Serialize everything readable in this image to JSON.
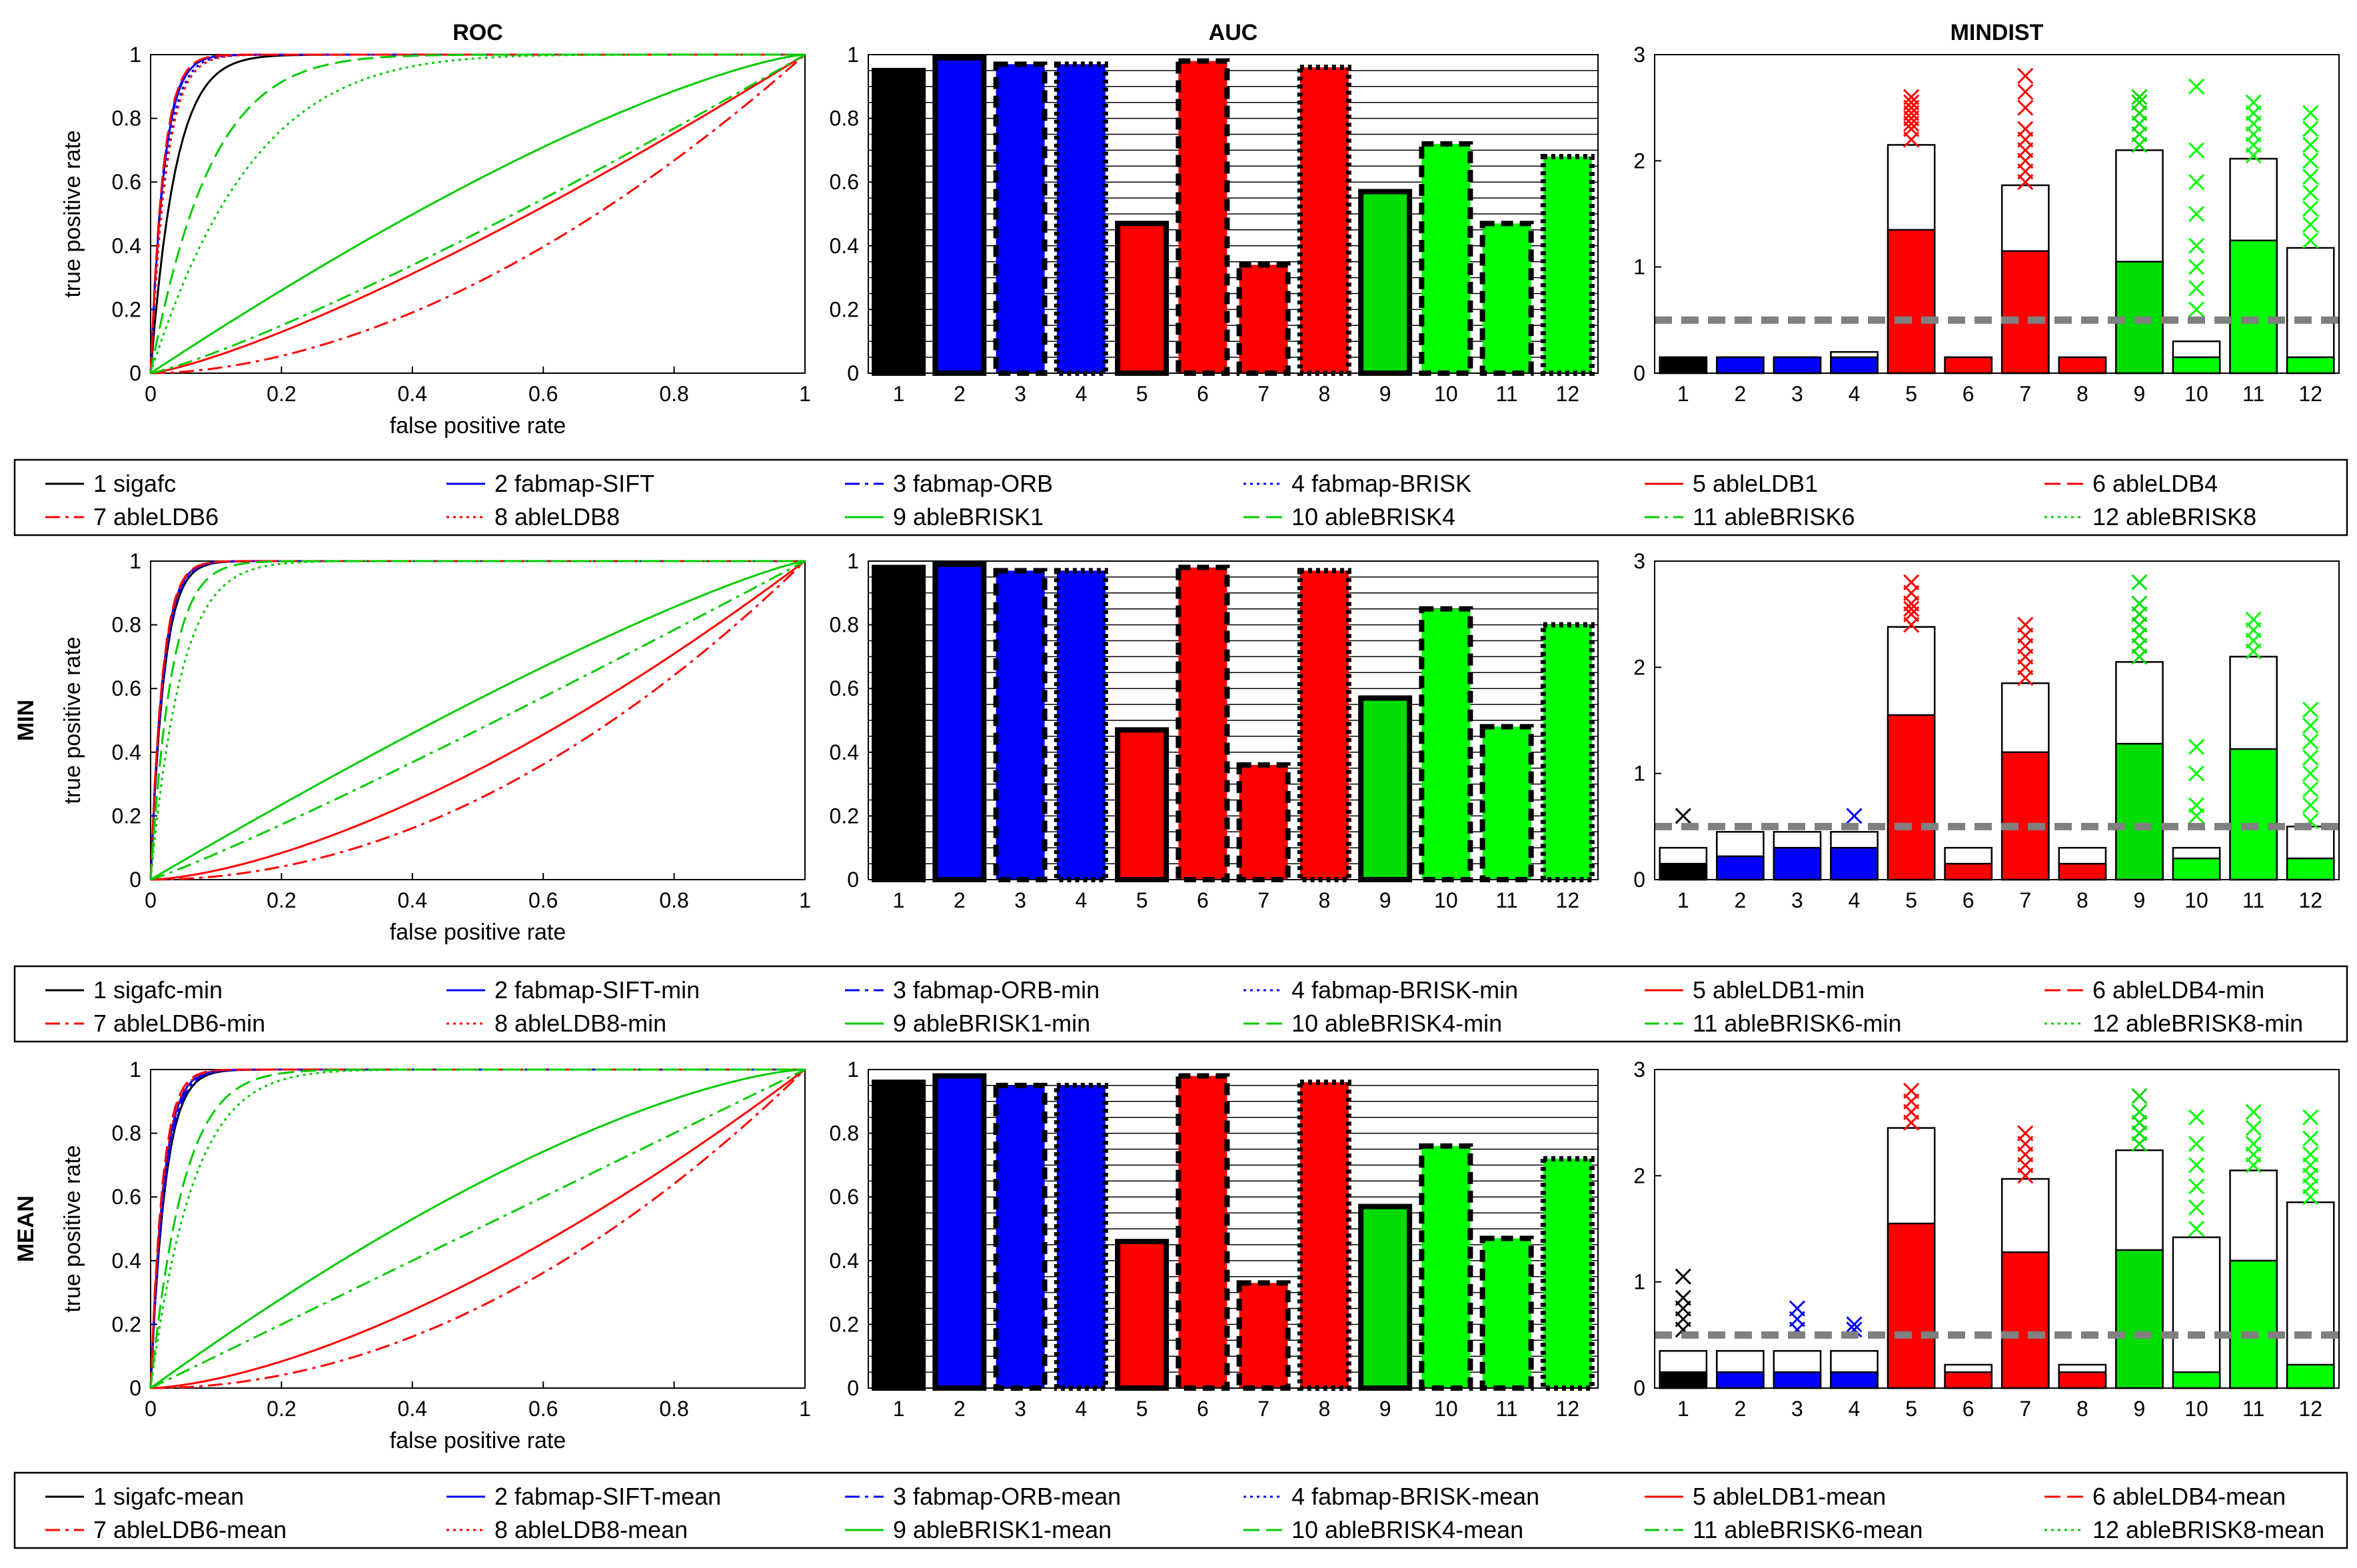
{
  "chart_data": {
    "type": "figure-grid",
    "column_titles": [
      "ROC",
      "AUC",
      "MINDIST"
    ],
    "rows": [
      {
        "row_label": "",
        "legend": [
          "1 sigafc",
          "2 fabmap-SIFT",
          "3 fabmap-ORB",
          "4 fabmap-BRISK",
          "5 ableLDB1",
          "6 ableLDB4",
          "7 ableLDB6",
          "8 ableLDB8",
          "9 ableBRISK1",
          "10 ableBRISK4",
          "11 ableBRISK6",
          "12 ableBRISK8"
        ],
        "roc": {
          "type": "line",
          "xlabel": "false positive rate",
          "ylabel": "true positive rate",
          "xlim": [
            0,
            1
          ],
          "ylim": [
            0,
            1
          ],
          "xticks": [
            "0",
            "0.2",
            "0.4",
            "0.6",
            "0.8",
            "1"
          ],
          "yticks": [
            "0",
            "0.2",
            "0.4",
            "0.6",
            "0.8",
            "1"
          ],
          "series_strength": [
            0.75,
            0.93,
            0.94,
            0.9,
            -0.15,
            0.95,
            -0.45,
            0.88,
            0.18,
            0.55,
            -0.1,
            0.45
          ]
        },
        "auc": {
          "type": "bar",
          "categories": [
            "1",
            "2",
            "3",
            "4",
            "5",
            "6",
            "7",
            "8",
            "9",
            "10",
            "11",
            "12"
          ],
          "ylim": [
            0,
            1
          ],
          "yticks": [
            "0",
            "0.2",
            "0.4",
            "0.6",
            "0.8",
            "1"
          ],
          "values": [
            0.95,
            0.99,
            0.97,
            0.97,
            0.47,
            0.98,
            0.34,
            0.96,
            0.57,
            0.72,
            0.47,
            0.68
          ]
        },
        "mindist": {
          "type": "bar",
          "categories": [
            "1",
            "2",
            "3",
            "4",
            "5",
            "6",
            "7",
            "8",
            "9",
            "10",
            "11",
            "12"
          ],
          "ylim": [
            0,
            3
          ],
          "yticks": [
            "0",
            "1",
            "2",
            "3"
          ],
          "threshold": 0.5,
          "lower": [
            0.15,
            0.15,
            0.15,
            0.15,
            1.35,
            0.15,
            1.15,
            0.15,
            1.05,
            0.15,
            1.25,
            0.15
          ],
          "upper": [
            0.15,
            0.15,
            0.15,
            0.2,
            2.15,
            0.15,
            1.77,
            0.15,
            2.1,
            0.3,
            2.02,
            1.18
          ],
          "outliers": [
            [],
            [],
            [],
            [],
            [
              2.2,
              2.3,
              2.35,
              2.4,
              2.45,
              2.5,
              2.55,
              2.6
            ],
            [],
            [
              1.8,
              1.9,
              2.0,
              2.1,
              2.2,
              2.3,
              2.5,
              2.65,
              2.8
            ],
            [],
            [
              2.15,
              2.25,
              2.35,
              2.45,
              2.55,
              2.6
            ],
            [
              0.6,
              0.8,
              1.0,
              1.2,
              1.5,
              1.8,
              2.1,
              2.7
            ],
            [
              2.05,
              2.15,
              2.25,
              2.35,
              2.45,
              2.55
            ],
            [
              1.25,
              1.4,
              1.55,
              1.7,
              1.85,
              2.0,
              2.15,
              2.3,
              2.45
            ]
          ]
        }
      },
      {
        "row_label": "MIN",
        "legend": [
          "1 sigafc-min",
          "2 fabmap-SIFT-min",
          "3 fabmap-ORB-min",
          "4 fabmap-BRISK-min",
          "5 ableLDB1-min",
          "6 ableLDB4-min",
          "7 ableLDB6-min",
          "8 ableLDB8-min",
          "9 ableBRISK1-min",
          "10 ableBRISK4-min",
          "11 ableBRISK6-min",
          "12 ableBRISK8-min"
        ],
        "roc": {
          "type": "line",
          "xlabel": "false positive rate",
          "ylabel": "true positive rate",
          "xlim": [
            0,
            1
          ],
          "ylim": [
            0,
            1
          ],
          "xticks": [
            "0",
            "0.2",
            "0.4",
            "0.6",
            "0.8",
            "1"
          ],
          "yticks": [
            "0",
            "0.2",
            "0.4",
            "0.6",
            "0.8",
            "1"
          ],
          "series_strength": [
            0.93,
            0.96,
            0.95,
            0.94,
            -0.3,
            0.97,
            -0.55,
            0.96,
            0.15,
            0.8,
            -0.05,
            0.7
          ]
        },
        "auc": {
          "type": "bar",
          "categories": [
            "1",
            "2",
            "3",
            "4",
            "5",
            "6",
            "7",
            "8",
            "9",
            "10",
            "11",
            "12"
          ],
          "ylim": [
            0,
            1
          ],
          "yticks": [
            "0",
            "0.2",
            "0.4",
            "0.6",
            "0.8",
            "1"
          ],
          "values": [
            0.98,
            0.99,
            0.97,
            0.97,
            0.47,
            0.98,
            0.36,
            0.97,
            0.57,
            0.85,
            0.48,
            0.8
          ]
        },
        "mindist": {
          "type": "bar",
          "categories": [
            "1",
            "2",
            "3",
            "4",
            "5",
            "6",
            "7",
            "8",
            "9",
            "10",
            "11",
            "12"
          ],
          "ylim": [
            0,
            3
          ],
          "yticks": [
            "0",
            "1",
            "2",
            "3"
          ],
          "threshold": 0.5,
          "lower": [
            0.15,
            0.22,
            0.3,
            0.3,
            1.55,
            0.15,
            1.2,
            0.15,
            1.28,
            0.2,
            1.23,
            0.2
          ],
          "upper": [
            0.3,
            0.45,
            0.45,
            0.45,
            2.38,
            0.3,
            1.85,
            0.3,
            2.05,
            0.3,
            2.1,
            0.5
          ],
          "outliers": [
            [
              0.6
            ],
            [],
            [],
            [
              0.6
            ],
            [
              2.4,
              2.5,
              2.55,
              2.6,
              2.7,
              2.8
            ],
            [],
            [
              1.9,
              2.0,
              2.1,
              2.2,
              2.3,
              2.4
            ],
            [],
            [
              2.1,
              2.2,
              2.3,
              2.4,
              2.5,
              2.6,
              2.8
            ],
            [
              0.6,
              0.7,
              1.0,
              1.25
            ],
            [
              2.15,
              2.25,
              2.35,
              2.45
            ],
            [
              0.55,
              0.7,
              0.85,
              1.0,
              1.15,
              1.3,
              1.45,
              1.6
            ]
          ]
        }
      },
      {
        "row_label": "MEAN",
        "legend": [
          "1 sigafc-mean",
          "2 fabmap-SIFT-mean",
          "3 fabmap-ORB-mean",
          "4 fabmap-BRISK-mean",
          "5 ableLDB1-mean",
          "6 ableLDB4-mean",
          "7 ableLDB6-mean",
          "8 ableLDB8-mean",
          "9 ableBRISK1-mean",
          "10 ableBRISK4-mean",
          "11 ableBRISK6-mean",
          "12 ableBRISK8-mean"
        ],
        "roc": {
          "type": "line",
          "xlabel": "false positive rate",
          "ylabel": "true positive rate",
          "xlim": [
            0,
            1
          ],
          "ylim": [
            0,
            1
          ],
          "xticks": [
            "0",
            "0.2",
            "0.4",
            "0.6",
            "0.8",
            "1"
          ],
          "yticks": [
            "0",
            "0.2",
            "0.4",
            "0.6",
            "0.8",
            "1"
          ],
          "series_strength": [
            0.9,
            0.94,
            0.92,
            0.91,
            -0.3,
            0.97,
            -0.55,
            0.95,
            0.2,
            0.68,
            0.0,
            0.62
          ]
        },
        "auc": {
          "type": "bar",
          "categories": [
            "1",
            "2",
            "3",
            "4",
            "5",
            "6",
            "7",
            "8",
            "9",
            "10",
            "11",
            "12"
          ],
          "ylim": [
            0,
            1
          ],
          "yticks": [
            "0",
            "0.2",
            "0.4",
            "0.6",
            "0.8",
            "1"
          ],
          "values": [
            0.96,
            0.98,
            0.95,
            0.95,
            0.46,
            0.98,
            0.33,
            0.96,
            0.57,
            0.76,
            0.47,
            0.72
          ]
        },
        "mindist": {
          "type": "bar",
          "categories": [
            "1",
            "2",
            "3",
            "4",
            "5",
            "6",
            "7",
            "8",
            "9",
            "10",
            "11",
            "12"
          ],
          "ylim": [
            0,
            3
          ],
          "yticks": [
            "0",
            "1",
            "2",
            "3"
          ],
          "threshold": 0.5,
          "lower": [
            0.15,
            0.15,
            0.15,
            0.15,
            1.55,
            0.15,
            1.28,
            0.15,
            1.3,
            0.15,
            1.2,
            0.22
          ],
          "upper": [
            0.35,
            0.35,
            0.35,
            0.35,
            2.45,
            0.22,
            1.97,
            0.22,
            2.24,
            1.42,
            2.05,
            1.75
          ],
          "outliers": [
            [
              0.55,
              0.65,
              0.75,
              0.85,
              1.05
            ],
            [],
            [
              0.55,
              0.65,
              0.75
            ],
            [
              0.55,
              0.6
            ],
            [
              2.5,
              2.6,
              2.7,
              2.8
            ],
            [],
            [
              2.0,
              2.1,
              2.2,
              2.3,
              2.4
            ],
            [],
            [
              2.3,
              2.4,
              2.5,
              2.6,
              2.75
            ],
            [
              1.5,
              1.7,
              1.9,
              2.1,
              2.3,
              2.55
            ],
            [
              2.1,
              2.2,
              2.3,
              2.45,
              2.6
            ],
            [
              1.8,
              1.9,
              2.0,
              2.1,
              2.2,
              2.35,
              2.55
            ]
          ]
        }
      }
    ]
  }
}
